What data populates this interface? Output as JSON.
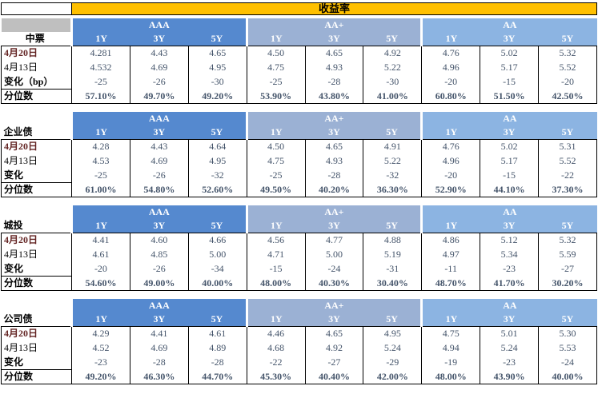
{
  "chart_data": {
    "type": "table",
    "title": "收益率",
    "ratings": [
      "AAA",
      "AA+",
      "AA"
    ],
    "tenors": [
      "1Y",
      "3Y",
      "5Y"
    ],
    "sections": [
      {
        "name": "中票",
        "rows": [
          {
            "label": "4月20日",
            "values": [
              "4.281",
              "4.43",
              "4.65",
              "4.50",
              "4.65",
              "4.92",
              "4.76",
              "5.02",
              "5.32"
            ]
          },
          {
            "label": "4月13日",
            "values": [
              "4.532",
              "4.69",
              "4.95",
              "4.75",
              "4.93",
              "5.22",
              "4.96",
              "5.17",
              "5.52"
            ]
          },
          {
            "label": "变化（bp）",
            "values": [
              "-25",
              "-26",
              "-30",
              "-25",
              "-28",
              "-30",
              "-20",
              "-15",
              "-20"
            ]
          },
          {
            "label": "分位数",
            "values": [
              "57.10%",
              "49.70%",
              "49.20%",
              "53.90%",
              "43.80%",
              "41.00%",
              "60.80%",
              "51.50%",
              "42.50%"
            ]
          }
        ]
      },
      {
        "name": "企业债",
        "rows": [
          {
            "label": "4月20日",
            "values": [
              "4.28",
              "4.43",
              "4.64",
              "4.50",
              "4.65",
              "4.91",
              "4.76",
              "5.02",
              "5.31"
            ]
          },
          {
            "label": "4月13日",
            "values": [
              "4.53",
              "4.69",
              "4.95",
              "4.75",
              "4.93",
              "5.22",
              "4.96",
              "5.17",
              "5.52"
            ]
          },
          {
            "label": "变化",
            "values": [
              "-25",
              "-26",
              "-32",
              "-25",
              "-28",
              "-32",
              "-20",
              "-15",
              "-22"
            ]
          },
          {
            "label": "分位数",
            "values": [
              "61.00%",
              "54.80%",
              "52.60%",
              "49.50%",
              "40.20%",
              "36.30%",
              "52.90%",
              "44.10%",
              "37.30%"
            ]
          }
        ]
      },
      {
        "name": "城投",
        "rows": [
          {
            "label": "4月20日",
            "values": [
              "4.41",
              "4.60",
              "4.66",
              "4.56",
              "4.77",
              "4.88",
              "4.86",
              "5.12",
              "5.32"
            ]
          },
          {
            "label": "4月13日",
            "values": [
              "4.61",
              "4.85",
              "5.00",
              "4.71",
              "5.00",
              "5.19",
              "4.97",
              "5.34",
              "5.59"
            ]
          },
          {
            "label": "变化",
            "values": [
              "-20",
              "-26",
              "-34",
              "-15",
              "-24",
              "-31",
              "-11",
              "-23",
              "-27"
            ]
          },
          {
            "label": "分位数",
            "values": [
              "54.60%",
              "49.00%",
              "40.00%",
              "48.00%",
              "40.30%",
              "30.40%",
              "48.70%",
              "41.70%",
              "30.20%"
            ]
          }
        ]
      },
      {
        "name": "公司债",
        "rows": [
          {
            "label": "4月20日",
            "values": [
              "4.29",
              "4.41",
              "4.61",
              "4.46",
              "4.65",
              "4.95",
              "4.75",
              "5.01",
              "5.30"
            ]
          },
          {
            "label": "4月13日",
            "values": [
              "4.52",
              "4.69",
              "4.89",
              "4.68",
              "4.92",
              "5.24",
              "4.94",
              "5.24",
              "5.53"
            ]
          },
          {
            "label": "变化",
            "values": [
              "-23",
              "-28",
              "-28",
              "-22",
              "-27",
              "-29",
              "-19",
              "-23",
              "-24"
            ]
          },
          {
            "label": "分位数",
            "values": [
              "49.20%",
              "46.30%",
              "44.70%",
              "45.30%",
              "40.40%",
              "42.00%",
              "48.00%",
              "43.90%",
              "40.00%"
            ]
          }
        ]
      }
    ]
  },
  "colors": {
    "title_bg": "#FFC000",
    "rating_aaa_bg": "#5589CF",
    "rating_aa_plus_bg": "#9BB1D4",
    "rating_aa_bg": "#8CB4E2",
    "gray_cell_bg": "#BFBFBF",
    "value_text": "#44546A",
    "latest_date_text": "#632423"
  }
}
